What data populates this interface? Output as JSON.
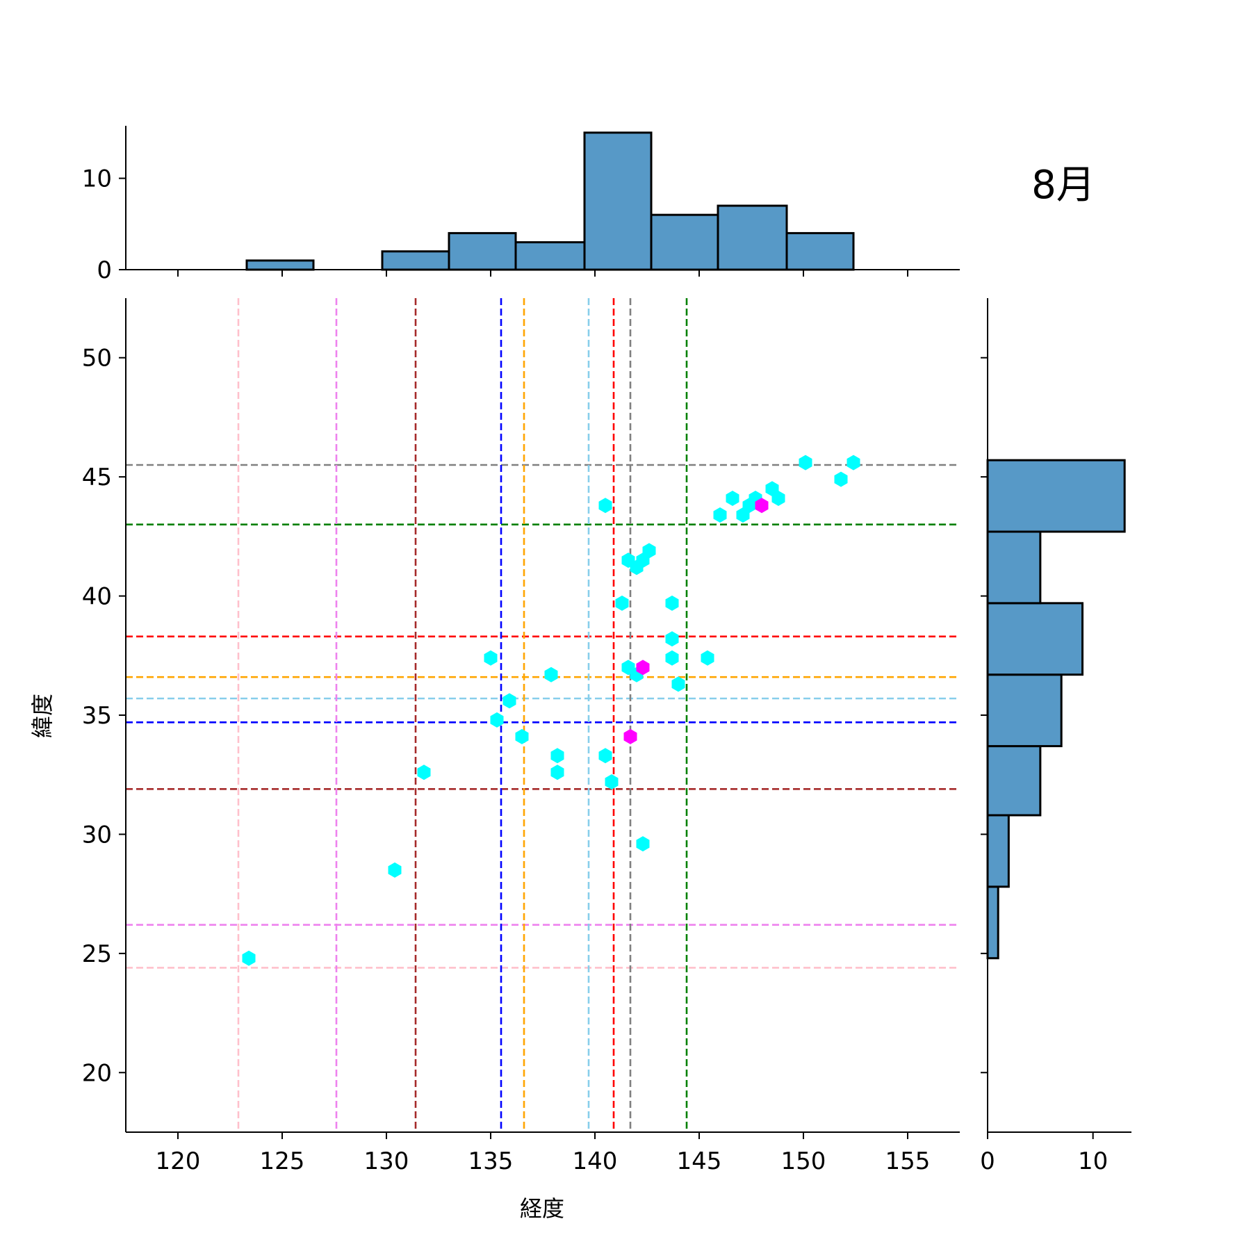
{
  "chart_data": {
    "type": "scatter",
    "month_label": "8月",
    "xlabel": "経度",
    "ylabel": "緯度",
    "xlim": [
      117.5,
      157.5
    ],
    "ylim": [
      17.5,
      52.5
    ],
    "xticks": [
      120,
      125,
      130,
      135,
      140,
      145,
      150,
      155
    ],
    "yticks": [
      20,
      25,
      30,
      35,
      40,
      45,
      50
    ],
    "colors": {
      "points": "#00ffff",
      "highlight_points": "#ff00ff",
      "hist_fill": "#5799c7",
      "hist_edge": "#000000"
    },
    "points": [
      {
        "x": 123.4,
        "y": 24.8
      },
      {
        "x": 130.4,
        "y": 28.5
      },
      {
        "x": 131.8,
        "y": 32.6
      },
      {
        "x": 135.0,
        "y": 37.4
      },
      {
        "x": 135.3,
        "y": 34.8
      },
      {
        "x": 135.9,
        "y": 35.6
      },
      {
        "x": 136.5,
        "y": 34.1
      },
      {
        "x": 137.9,
        "y": 36.7
      },
      {
        "x": 138.2,
        "y": 33.3
      },
      {
        "x": 138.2,
        "y": 32.6
      },
      {
        "x": 140.5,
        "y": 43.8
      },
      {
        "x": 140.5,
        "y": 33.3
      },
      {
        "x": 140.8,
        "y": 32.2
      },
      {
        "x": 141.3,
        "y": 39.7
      },
      {
        "x": 141.6,
        "y": 41.5
      },
      {
        "x": 141.6,
        "y": 37.0
      },
      {
        "x": 142.0,
        "y": 41.2
      },
      {
        "x": 142.0,
        "y": 36.7
      },
      {
        "x": 142.3,
        "y": 41.5
      },
      {
        "x": 142.3,
        "y": 29.6
      },
      {
        "x": 142.6,
        "y": 41.9
      },
      {
        "x": 143.7,
        "y": 39.7
      },
      {
        "x": 143.7,
        "y": 38.2
      },
      {
        "x": 143.7,
        "y": 37.4
      },
      {
        "x": 144.0,
        "y": 36.3
      },
      {
        "x": 145.4,
        "y": 37.4
      },
      {
        "x": 146.0,
        "y": 43.4
      },
      {
        "x": 146.6,
        "y": 44.1
      },
      {
        "x": 147.1,
        "y": 43.4
      },
      {
        "x": 147.4,
        "y": 43.8
      },
      {
        "x": 147.7,
        "y": 44.1
      },
      {
        "x": 148.5,
        "y": 44.5
      },
      {
        "x": 148.8,
        "y": 44.1
      },
      {
        "x": 150.1,
        "y": 45.6
      },
      {
        "x": 151.8,
        "y": 44.9
      },
      {
        "x": 152.4,
        "y": 45.6
      }
    ],
    "highlight_points": [
      {
        "x": 141.7,
        "y": 34.1
      },
      {
        "x": 142.3,
        "y": 37.0
      },
      {
        "x": 148.0,
        "y": 43.8
      }
    ],
    "vlines": [
      {
        "x": 122.9,
        "color": "#ffc0cb"
      },
      {
        "x": 127.6,
        "color": "#ee82ee"
      },
      {
        "x": 131.4,
        "color": "#a52a2a"
      },
      {
        "x": 135.5,
        "color": "#0000ff"
      },
      {
        "x": 136.6,
        "color": "#ffa500"
      },
      {
        "x": 139.7,
        "color": "#87ceeb"
      },
      {
        "x": 140.9,
        "color": "#ff0000"
      },
      {
        "x": 141.7,
        "color": "#808080"
      },
      {
        "x": 144.4,
        "color": "#008000"
      }
    ],
    "hlines": [
      {
        "y": 24.4,
        "color": "#ffc0cb"
      },
      {
        "y": 26.2,
        "color": "#ee82ee"
      },
      {
        "y": 31.9,
        "color": "#a52a2a"
      },
      {
        "y": 34.7,
        "color": "#0000ff"
      },
      {
        "y": 36.6,
        "color": "#ffa500"
      },
      {
        "y": 35.7,
        "color": "#87ceeb"
      },
      {
        "y": 38.3,
        "color": "#ff0000"
      },
      {
        "y": 45.5,
        "color": "#808080"
      },
      {
        "y": 43.0,
        "color": "#008000"
      }
    ],
    "x_hist": {
      "ylim": [
        0,
        15.75
      ],
      "yticks": [
        0,
        10
      ],
      "bins": [
        {
          "x0": 123.3,
          "x1": 126.5,
          "count": 1
        },
        {
          "x0": 126.5,
          "x1": 129.8,
          "count": 0
        },
        {
          "x0": 129.8,
          "x1": 133.0,
          "count": 2
        },
        {
          "x0": 133.0,
          "x1": 136.2,
          "count": 4
        },
        {
          "x0": 136.2,
          "x1": 139.5,
          "count": 3
        },
        {
          "x0": 139.5,
          "x1": 142.7,
          "count": 15
        },
        {
          "x0": 142.7,
          "x1": 145.9,
          "count": 6
        },
        {
          "x0": 145.9,
          "x1": 149.2,
          "count": 7
        },
        {
          "x0": 149.2,
          "x1": 152.4,
          "count": 4
        }
      ]
    },
    "y_hist": {
      "xlim": [
        0,
        13.65
      ],
      "xticks": [
        0,
        10
      ],
      "bins": [
        {
          "y0": 24.8,
          "y1": 27.8,
          "count": 1
        },
        {
          "y0": 27.8,
          "y1": 30.8,
          "count": 2
        },
        {
          "y0": 30.8,
          "y1": 33.7,
          "count": 5
        },
        {
          "y0": 33.7,
          "y1": 36.7,
          "count": 7
        },
        {
          "y0": 36.7,
          "y1": 39.7,
          "count": 9
        },
        {
          "y0": 39.7,
          "y1": 42.7,
          "count": 5
        },
        {
          "y0": 42.7,
          "y1": 45.7,
          "count": 13
        }
      ]
    }
  }
}
